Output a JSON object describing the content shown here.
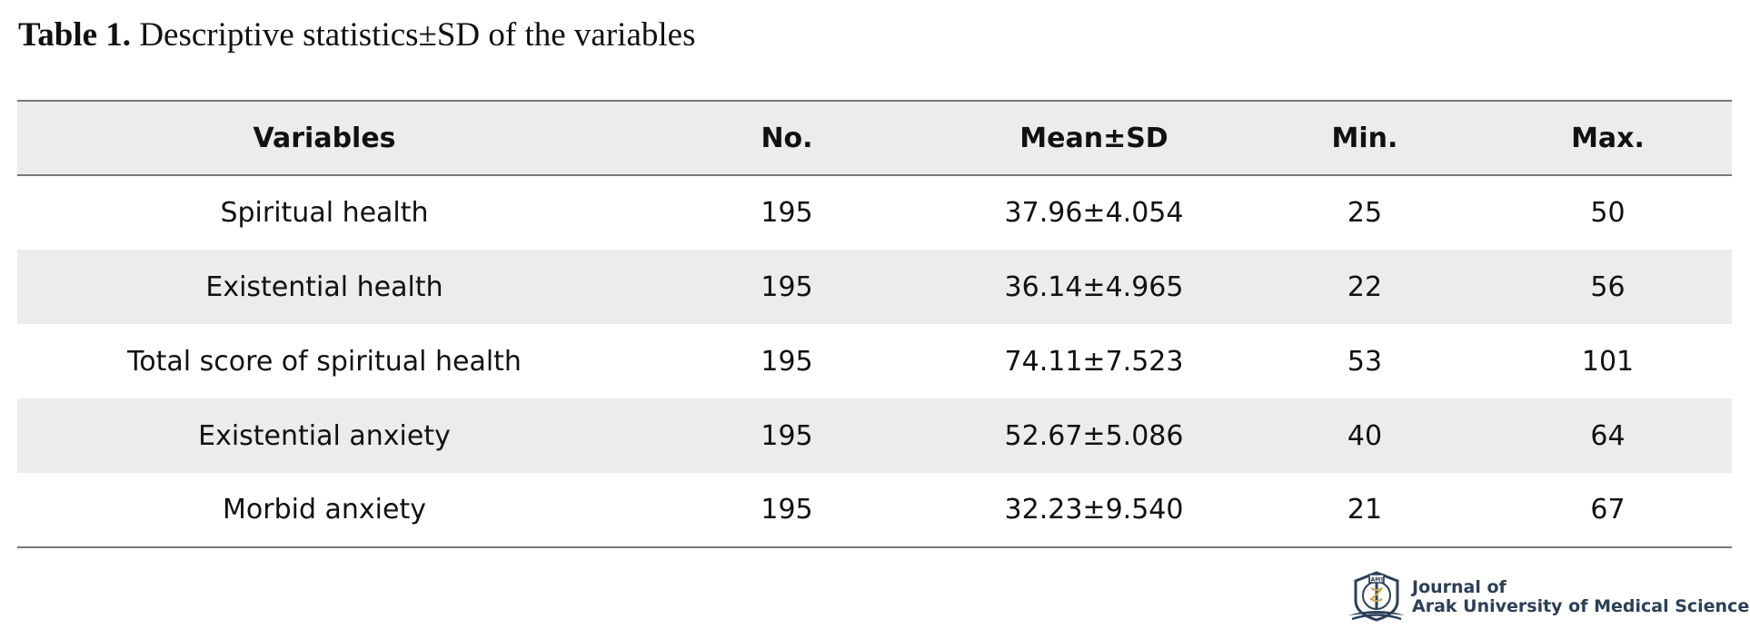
{
  "caption": {
    "label": "Table 1.",
    "text": "Descriptive statistics±SD of the variables"
  },
  "table": {
    "headers": [
      "Variables",
      "No.",
      "Mean±SD",
      "Min.",
      "Max."
    ],
    "rows": [
      [
        "Spiritual health",
        "195",
        "37.96±4.054",
        "25",
        "50"
      ],
      [
        "Existential health",
        "195",
        "36.14±4.965",
        "22",
        "56"
      ],
      [
        "Total score of spiritual health",
        "195",
        "74.11±7.523",
        "53",
        "101"
      ],
      [
        "Existential anxiety",
        "195",
        "52.67±5.086",
        "40",
        "64"
      ],
      [
        "Morbid anxiety",
        "195",
        "32.23±9.540",
        "21",
        "67"
      ]
    ]
  },
  "logo": {
    "line1": "Journal of",
    "line2": "Arak University of Medical Sciences",
    "emblem_text": "JAMS",
    "icon": "journal-emblem-icon",
    "text_color": "#2c3f57",
    "accent_color": "#c9a64a"
  }
}
